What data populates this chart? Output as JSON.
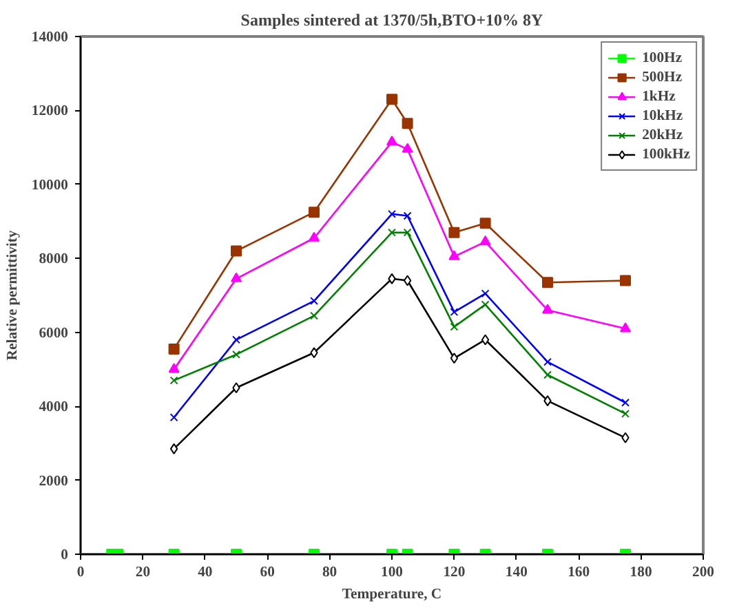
{
  "chart_data": {
    "type": "line",
    "title": "Samples sintered at 1370/5h,BTO+10% 8Y",
    "xlabel": "Temperature, C",
    "ylabel": "Relative permittivity",
    "x": [
      30,
      50,
      75,
      100,
      105,
      120,
      130,
      150,
      175
    ],
    "series": [
      {
        "name": "100Hz",
        "color": "#00ff00",
        "marker": "square",
        "x": [
          10,
          12,
          30,
          50,
          75,
          100,
          105,
          120,
          130,
          150,
          175
        ],
        "values": [
          0,
          0,
          0,
          0,
          0,
          0,
          0,
          0,
          0,
          0,
          0
        ]
      },
      {
        "name": "500Hz",
        "color": "#993300",
        "marker": "square",
        "values": [
          5550,
          8200,
          9250,
          12300,
          11650,
          8700,
          8950,
          7350,
          7400
        ]
      },
      {
        "name": "1kHz",
        "color": "#ff00ff",
        "marker": "triangle",
        "values": [
          5000,
          7450,
          8550,
          11150,
          10950,
          8050,
          8450,
          6600,
          6100
        ]
      },
      {
        "name": "10kHz",
        "color": "#0000ff",
        "marker": "cross",
        "values": [
          3700,
          5800,
          6850,
          9200,
          9150,
          6550,
          7050,
          5200,
          4100
        ]
      },
      {
        "name": "20kHz",
        "color": "#008000",
        "marker": "cross",
        "values": [
          4700,
          5400,
          6450,
          8700,
          8700,
          6150,
          6750,
          4850,
          3800
        ]
      },
      {
        "name": "100kHz",
        "color": "#000000",
        "marker": "diamond",
        "values": [
          2850,
          4500,
          5450,
          7450,
          7400,
          5300,
          5800,
          4150,
          3150
        ]
      }
    ],
    "xlim": [
      0,
      200
    ],
    "xticks": [
      0,
      20,
      40,
      60,
      80,
      100,
      120,
      140,
      160,
      180,
      200
    ],
    "ylim": [
      0,
      14000
    ],
    "yticks": [
      0,
      2000,
      4000,
      6000,
      8000,
      10000,
      12000,
      14000
    ],
    "legend": "top right",
    "grid": false,
    "line_style": "solid"
  }
}
